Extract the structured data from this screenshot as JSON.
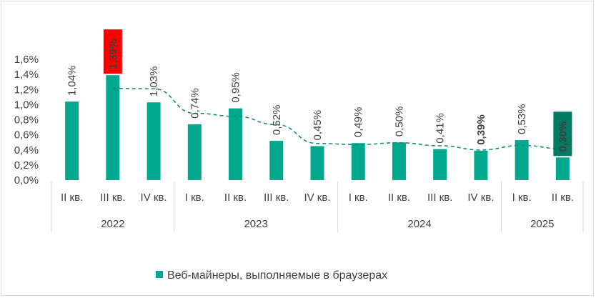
{
  "chart_data": {
    "type": "bar",
    "categories": [
      "II кв.",
      "III кв.",
      "IV кв.",
      "I кв.",
      "II кв.",
      "III кв.",
      "IV кв.",
      "I кв.",
      "II кв.",
      "III кв.",
      "IV кв.",
      "I кв.",
      "II кв."
    ],
    "years": [
      {
        "label": "2022",
        "count": 3
      },
      {
        "label": "2023",
        "count": 4
      },
      {
        "label": "2024",
        "count": 4
      },
      {
        "label": "2025",
        "count": 2
      }
    ],
    "series": [
      {
        "name": "Веб-майнеры, выполняемые в браузерах",
        "values": [
          1.04,
          1.39,
          1.03,
          0.74,
          0.95,
          0.52,
          0.45,
          0.49,
          0.5,
          0.41,
          0.39,
          0.53,
          0.3
        ],
        "labels": [
          "1,04%",
          "1,39%",
          "1,03%",
          "0,74%",
          "0,95%",
          "0,52%",
          "0,45%",
          "0,49%",
          "0,50%",
          "0,41%",
          "0,39%",
          "0,53%",
          "0,30%"
        ],
        "color": "#00a88e"
      }
    ],
    "trendline": {
      "type": "moving-average",
      "period": 2,
      "style": "dashed",
      "color": "#1a8c78"
    },
    "highlights": [
      {
        "index": 1,
        "background": "#ff0000",
        "text_color": "#ffffff"
      },
      {
        "index": 10,
        "background": "none",
        "text_color": "#000000"
      },
      {
        "index": 12,
        "background": "#007a62",
        "text_color": "#ffffff"
      }
    ],
    "yticks": [
      "0,0%",
      "0,2%",
      "0,4%",
      "0,6%",
      "0,8%",
      "1,0%",
      "1,2%",
      "1,4%",
      "1,6%"
    ],
    "ylim": [
      0,
      1.6
    ],
    "ystep": 0.2,
    "grid": false,
    "legend": "bottom"
  }
}
